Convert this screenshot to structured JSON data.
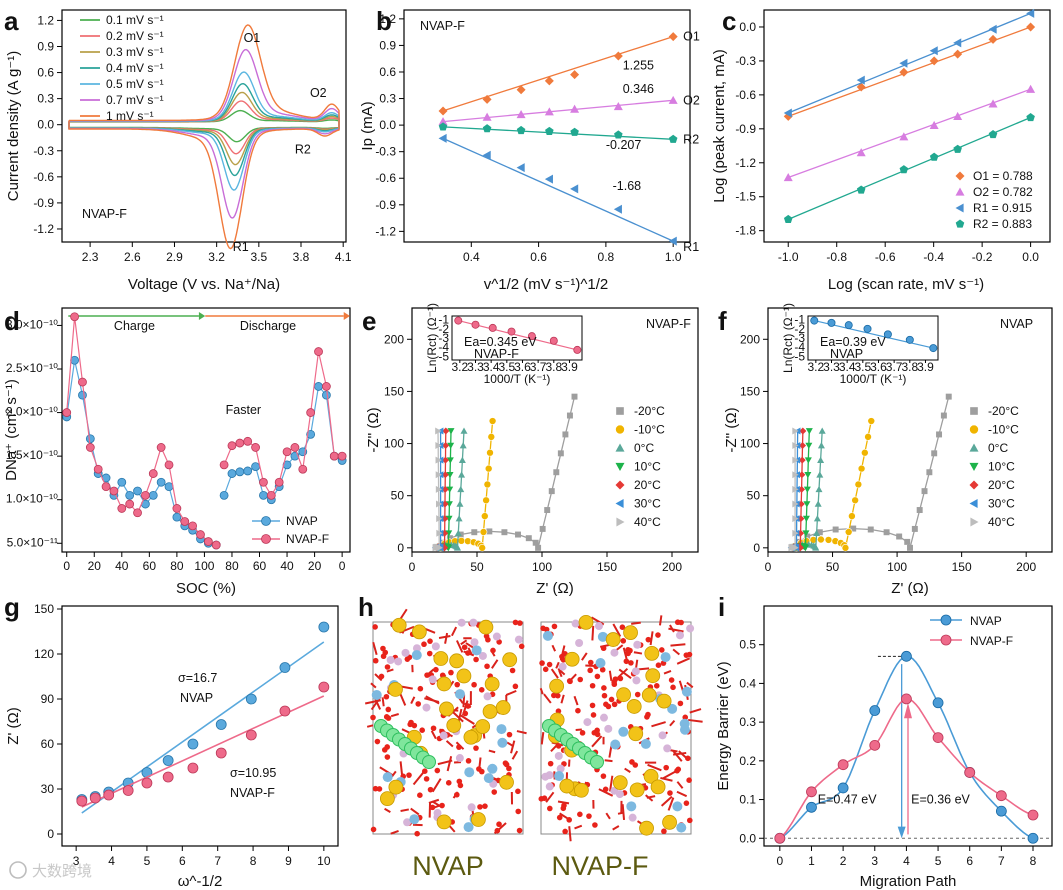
{
  "figure": {
    "watermark": "大数跨境",
    "panels": [
      {
        "id": "a",
        "label": "a"
      },
      {
        "id": "b",
        "label": "b"
      },
      {
        "id": "c",
        "label": "c"
      },
      {
        "id": "d",
        "label": "d"
      },
      {
        "id": "e",
        "label": "e"
      },
      {
        "id": "f",
        "label": "f"
      },
      {
        "id": "g",
        "label": "g"
      },
      {
        "id": "h",
        "label": "h"
      },
      {
        "id": "i",
        "label": "i"
      }
    ]
  },
  "chart_data": [
    {
      "id": "a",
      "type": "line",
      "title": "",
      "xlabel": "Voltage (V vs. Na⁺/Na)",
      "ylabel": "Current density (A g⁻¹)",
      "xlim": [
        2.1,
        4.12
      ],
      "ylim": [
        -1.35,
        1.32
      ],
      "xticks": [
        2.3,
        2.6,
        2.9,
        3.2,
        3.5,
        3.8,
        4.1
      ],
      "yticks": [
        -1.2,
        -0.9,
        -0.6,
        -0.3,
        0.0,
        0.3,
        0.6,
        0.9,
        1.2
      ],
      "annotations": [
        "O1",
        "O2",
        "R1",
        "R2",
        "NVAP-F"
      ],
      "series": [
        {
          "name": "0.1 mV s⁻¹",
          "color": "#4caf50",
          "scale": 0.12
        },
        {
          "name": "0.2 mV s⁻¹",
          "color": "#ef6f73",
          "scale": 0.22
        },
        {
          "name": "0.3 mV s⁻¹",
          "color": "#b8a04a",
          "scale": 0.31
        },
        {
          "name": "0.4 mV s⁻¹",
          "color": "#2aa39a",
          "scale": 0.4
        },
        {
          "name": "0.5 mV s⁻¹",
          "color": "#5bb6e0",
          "scale": 0.52
        },
        {
          "name": "0.7 mV s⁻¹",
          "color": "#c86dd7",
          "scale": 0.75
        },
        {
          "name": "1 mV s⁻¹",
          "color": "#f07a3c",
          "scale": 1.0
        }
      ],
      "peaks": {
        "O1": {
          "x": 3.42,
          "y": 1.0
        },
        "O2": {
          "x": 4.02,
          "y": 0.18
        },
        "R1": {
          "x": 3.3,
          "y": -1.27
        },
        "R2": {
          "x": 3.97,
          "y": -0.08
        }
      }
    },
    {
      "id": "b",
      "type": "scatter",
      "title": "NVAP-F",
      "xlabel": "v^1/2 (mV s⁻¹)^1/2",
      "ylabel": "Ip (mA)",
      "xlim": [
        0.2,
        1.05
      ],
      "ylim": [
        -1.32,
        1.3
      ],
      "xticks": [
        0.4,
        0.6,
        0.8,
        1.0
      ],
      "yticks": [
        -1.2,
        -0.9,
        -0.6,
        -0.3,
        0.0,
        0.3,
        0.6,
        0.9,
        1.2
      ],
      "x": [
        0.316,
        0.447,
        0.548,
        0.632,
        0.707,
        0.837,
        1.0
      ],
      "series": [
        {
          "name": "O1",
          "color": "#f07a3c",
          "marker": "diamond",
          "slope": "1.255",
          "values": [
            0.16,
            0.29,
            0.4,
            0.5,
            0.57,
            0.78,
            1.0
          ]
        },
        {
          "name": "O2",
          "color": "#d77de0",
          "marker": "triangle",
          "slope": "0.346",
          "values": [
            0.04,
            0.09,
            0.12,
            0.15,
            0.18,
            0.21,
            0.28
          ]
        },
        {
          "name": "R2",
          "color": "#21a890",
          "marker": "pentagon",
          "slope": "-0.207",
          "values": [
            -0.02,
            -0.04,
            -0.06,
            -0.07,
            -0.08,
            -0.11,
            -0.16
          ]
        },
        {
          "name": "R1",
          "color": "#4a90d0",
          "marker": "triangle-left",
          "slope": "-1.68",
          "values": [
            -0.15,
            -0.34,
            -0.48,
            -0.61,
            -0.72,
            -0.95,
            -1.31
          ]
        }
      ]
    },
    {
      "id": "c",
      "type": "scatter",
      "xlabel": "Log (scan rate, mV s⁻¹)",
      "ylabel": "Log (peak current, mA)",
      "xlim": [
        -1.1,
        0.08
      ],
      "ylim": [
        -1.9,
        0.15
      ],
      "xticks": [
        -1.0,
        -0.8,
        -0.6,
        -0.4,
        -0.2,
        0.0
      ],
      "yticks": [
        -1.8,
        -1.5,
        -1.2,
        -0.9,
        -0.6,
        -0.3,
        0.0
      ],
      "x": [
        -1.0,
        -0.699,
        -0.523,
        -0.398,
        -0.301,
        -0.155,
        0.0
      ],
      "series": [
        {
          "name": "O1 = 0.788",
          "color": "#f07a3c",
          "marker": "diamond",
          "values": [
            -0.79,
            -0.53,
            -0.4,
            -0.3,
            -0.24,
            -0.11,
            0.0
          ]
        },
        {
          "name": "O2 = 0.782",
          "color": "#d77de0",
          "marker": "triangle",
          "values": [
            -1.33,
            -1.11,
            -0.97,
            -0.87,
            -0.79,
            -0.68,
            -0.55
          ]
        },
        {
          "name": "R1 = 0.915",
          "color": "#4a90d0",
          "marker": "triangle-left",
          "values": [
            -0.76,
            -0.47,
            -0.32,
            -0.21,
            -0.14,
            -0.02,
            0.12
          ]
        },
        {
          "name": "R2 = 0.883",
          "color": "#21a890",
          "marker": "pentagon",
          "values": [
            -1.7,
            -1.44,
            -1.26,
            -1.15,
            -1.08,
            -0.95,
            -0.8
          ]
        }
      ]
    },
    {
      "id": "d",
      "type": "line",
      "xlabel": "SOC (%)",
      "ylabel": "DNa⁺ (cm² s⁻¹)",
      "ylim": [
        4e-11,
        3.2e-10
      ],
      "xticks": [
        "0",
        "20",
        "40",
        "60",
        "80",
        "100",
        "80",
        "60",
        "40",
        "20",
        "0"
      ],
      "yticks": [
        "5.0×10⁻¹¹",
        "1.0×10⁻¹⁰",
        "1.5×10⁻¹⁰",
        "2.0×10⁻¹⁰",
        "2.5×10⁻¹⁰",
        "3.0×10⁻¹⁰"
      ],
      "annotations": [
        "Charge",
        "Discharge",
        "Faster"
      ],
      "series": [
        {
          "name": "NVAP",
          "color": "#5aa9dd",
          "path": [
            [
              0,
              1.95e-10
            ],
            [
              5,
              2.6e-10
            ],
            [
              10,
              2.2e-10
            ],
            [
              15,
              1.7e-10
            ],
            [
              20,
              1.3e-10
            ],
            [
              25,
              1.25e-10
            ],
            [
              30,
              1.05e-10
            ],
            [
              35,
              1.2e-10
            ],
            [
              40,
              1.05e-10
            ],
            [
              45,
              1.1e-10
            ],
            [
              50,
              9.5e-11
            ],
            [
              55,
              1.05e-10
            ],
            [
              60,
              1.2e-10
            ],
            [
              65,
              1.15e-10
            ],
            [
              70,
              8e-11
            ],
            [
              75,
              7e-11
            ],
            [
              80,
              6.5e-11
            ],
            [
              85,
              5.5e-11
            ],
            [
              90,
              5e-11
            ],
            [
              95,
              4.8e-11
            ],
            [
              100,
              1.05e-10
            ],
            [
              105,
              1.3e-10
            ],
            [
              110,
              1.32e-10
            ],
            [
              115,
              1.33e-10
            ],
            [
              120,
              1.38e-10
            ],
            [
              125,
              1.05e-10
            ],
            [
              130,
              1e-10
            ],
            [
              135,
              1.15e-10
            ],
            [
              140,
              1.4e-10
            ],
            [
              145,
              1.5e-10
            ],
            [
              150,
              1.55e-10
            ],
            [
              155,
              1.75e-10
            ],
            [
              160,
              2.3e-10
            ],
            [
              165,
              2.2e-10
            ],
            [
              170,
              1.5e-10
            ],
            [
              175,
              1.45e-10
            ]
          ]
        },
        {
          "name": "NVAP-F",
          "color": "#ee6a8a",
          "path": [
            [
              0,
              2e-10
            ],
            [
              5,
              3.1e-10
            ],
            [
              10,
              2.35e-10
            ],
            [
              15,
              1.6e-10
            ],
            [
              20,
              1.35e-10
            ],
            [
              25,
              1.15e-10
            ],
            [
              30,
              1.1e-10
            ],
            [
              35,
              9e-11
            ],
            [
              40,
              9.5e-11
            ],
            [
              45,
              8.5e-11
            ],
            [
              50,
              1.05e-10
            ],
            [
              55,
              1.3e-10
            ],
            [
              60,
              1.6e-10
            ],
            [
              65,
              1.4e-10
            ],
            [
              70,
              9e-11
            ],
            [
              75,
              7.5e-11
            ],
            [
              80,
              7e-11
            ],
            [
              85,
              6e-11
            ],
            [
              90,
              5.2e-11
            ],
            [
              95,
              4.8e-11
            ],
            [
              100,
              1.4e-10
            ],
            [
              105,
              1.62e-10
            ],
            [
              110,
              1.65e-10
            ],
            [
              115,
              1.67e-10
            ],
            [
              120,
              1.6e-10
            ],
            [
              125,
              1.2e-10
            ],
            [
              130,
              1.05e-10
            ],
            [
              135,
              1.2e-10
            ],
            [
              140,
              1.55e-10
            ],
            [
              145,
              1.6e-10
            ],
            [
              150,
              1.35e-10
            ],
            [
              155,
              2e-10
            ],
            [
              160,
              2.7e-10
            ],
            [
              165,
              2.3e-10
            ],
            [
              170,
              1.5e-10
            ],
            [
              175,
              1.5e-10
            ]
          ]
        }
      ]
    },
    {
      "id": "e",
      "type": "scatter",
      "title": "NVAP-F",
      "xlabel": "Z' (Ω)",
      "ylabel": "-Z'' (Ω)",
      "xlim": [
        0,
        220
      ],
      "ylim": [
        -4,
        230
      ],
      "xticks": [
        0,
        50,
        100,
        150,
        200
      ],
      "yticks": [
        0,
        50,
        100,
        150,
        200
      ],
      "series": [
        {
          "name": "-20°C",
          "color": "#9e9e9e",
          "marker": "square",
          "rct": 75,
          "rs": 22,
          "tail": 125
        },
        {
          "name": "-10°C",
          "color": "#f0b400",
          "marker": "circle",
          "rct": 32,
          "rs": 22,
          "tail": 62
        },
        {
          "name": "0°C",
          "color": "#5aa89a",
          "marker": "triangle",
          "rct": 14,
          "rs": 21,
          "tail": 40
        },
        {
          "name": "10°C",
          "color": "#1db34a",
          "marker": "triangle-down",
          "rct": 8,
          "rs": 20,
          "tail": 30
        },
        {
          "name": "20°C",
          "color": "#e53935",
          "marker": "diamond",
          "rct": 6,
          "rs": 19,
          "tail": 26
        },
        {
          "name": "30°C",
          "color": "#3a8fd8",
          "marker": "triangle-left",
          "rct": 4,
          "rs": 18,
          "tail": 22
        },
        {
          "name": "40°C",
          "color": "#bdbdbd",
          "marker": "triangle-right",
          "rct": 3,
          "rs": 18,
          "tail": 20
        }
      ],
      "inset": {
        "xlabel": "1000/T (K⁻¹)",
        "ylabel": "Ln(Rct) (Ω⁻¹)",
        "annotation": "Ea=0.345 eV",
        "sublabel": "NVAP-F",
        "color": "#ee6a8a",
        "xticks": [
          3.2,
          3.3,
          3.4,
          3.5,
          3.6,
          3.7,
          3.8,
          3.9
        ],
        "yticks": [
          -1,
          -2,
          -3,
          -4,
          -5
        ],
        "x": [
          3.19,
          3.3,
          3.41,
          3.53,
          3.66,
          3.8,
          3.95
        ],
        "values": [
          -1.0,
          -1.45,
          -1.8,
          -2.2,
          -2.7,
          -3.2,
          -4.2
        ]
      }
    },
    {
      "id": "f",
      "type": "scatter",
      "title": "NVAP",
      "xlabel": "Z' (Ω)",
      "ylabel": "-Z'' (Ω)",
      "xlim": [
        0,
        220
      ],
      "ylim": [
        -4,
        230
      ],
      "xticks": [
        0,
        50,
        100,
        150,
        200
      ],
      "yticks": [
        0,
        50,
        100,
        150,
        200
      ],
      "series": [
        {
          "name": "-20°C",
          "color": "#9e9e9e",
          "marker": "square",
          "rct": 88,
          "rs": 22,
          "tail": 140
        },
        {
          "name": "-10°C",
          "color": "#f0b400",
          "marker": "circle",
          "rct": 38,
          "rs": 22,
          "tail": 80
        },
        {
          "name": "0°C",
          "color": "#5aa89a",
          "marker": "triangle",
          "rct": 16,
          "rs": 21,
          "tail": 42
        },
        {
          "name": "10°C",
          "color": "#1db34a",
          "marker": "triangle-down",
          "rct": 9,
          "rs": 20,
          "tail": 32
        },
        {
          "name": "20°C",
          "color": "#e53935",
          "marker": "diamond",
          "rct": 6,
          "rs": 19,
          "tail": 27
        },
        {
          "name": "30°C",
          "color": "#3a8fd8",
          "marker": "triangle-left",
          "rct": 4,
          "rs": 18,
          "tail": 23
        },
        {
          "name": "40°C",
          "color": "#bdbdbd",
          "marker": "triangle-right",
          "rct": 3,
          "rs": 18,
          "tail": 21
        }
      ],
      "inset": {
        "xlabel": "1000/T (K⁻¹)",
        "ylabel": "Ln(Rct) (Ω⁻¹)",
        "annotation": "Ea=0.39 eV",
        "sublabel": "NVAP",
        "color": "#4a9bd6",
        "xticks": [
          3.2,
          3.3,
          3.4,
          3.5,
          3.6,
          3.7,
          3.8,
          3.9
        ],
        "yticks": [
          -1,
          -2,
          -3,
          -4,
          -5
        ],
        "x": [
          3.19,
          3.3,
          3.41,
          3.53,
          3.66,
          3.8,
          3.95
        ],
        "values": [
          -1.0,
          -1.25,
          -1.5,
          -1.9,
          -2.5,
          -3.1,
          -4.0
        ]
      }
    },
    {
      "id": "g",
      "type": "scatter",
      "xlabel": "ω^-1/2",
      "ylabel": "Z' (Ω)",
      "xlim": [
        2.6,
        10.4
      ],
      "ylim": [
        -8,
        152
      ],
      "xticks": [
        3,
        4,
        5,
        6,
        7,
        8,
        9,
        10
      ],
      "yticks": [
        0,
        30,
        60,
        90,
        120,
        150
      ],
      "series": [
        {
          "name": "NVAP",
          "sigma": "σ=16.7",
          "color": "#5aa9dd",
          "x": [
            3.16,
            3.54,
            3.92,
            4.47,
            5.0,
            5.6,
            6.3,
            7.1,
            7.95,
            8.9,
            10.0
          ],
          "values": [
            23,
            25,
            28,
            34,
            41,
            49,
            60,
            73,
            90,
            111,
            138
          ],
          "fit": [
            [
              3.16,
              14
            ],
            [
              10.0,
              128
            ]
          ]
        },
        {
          "name": "NVAP-F",
          "sigma": "σ=10.95",
          "color": "#ee6a8a",
          "x": [
            3.16,
            3.54,
            3.92,
            4.47,
            5.0,
            5.6,
            6.3,
            7.1,
            7.95,
            8.9,
            10.0
          ],
          "values": [
            22,
            24,
            26,
            29,
            34,
            38,
            44,
            54,
            66,
            82,
            98
          ],
          "fit": [
            [
              3.16,
              18
            ],
            [
              10.0,
              92
            ]
          ]
        }
      ]
    },
    {
      "id": "h",
      "type": "other",
      "labels": [
        "NVAP",
        "NVAP-F"
      ]
    },
    {
      "id": "i",
      "type": "line",
      "xlabel": "Migration Path",
      "ylabel": "Energy Barrier (eV)",
      "xlim": [
        -0.5,
        8.6
      ],
      "ylim": [
        -0.02,
        0.6
      ],
      "xticks": [
        0,
        1,
        2,
        3,
        4,
        5,
        6,
        7,
        8
      ],
      "yticks": [
        0.0,
        0.1,
        0.2,
        0.3,
        0.4,
        0.5
      ],
      "x": [
        0,
        1,
        2,
        3,
        4,
        5,
        6,
        7,
        8
      ],
      "series": [
        {
          "name": "NVAP",
          "color": "#4a9bd6",
          "values": [
            0.0,
            0.08,
            0.13,
            0.33,
            0.47,
            0.35,
            0.17,
            0.07,
            0.0
          ]
        },
        {
          "name": "NVAP-F",
          "color": "#ee6a8a",
          "values": [
            0.0,
            0.12,
            0.19,
            0.24,
            0.36,
            0.26,
            0.17,
            0.11,
            0.06
          ]
        }
      ],
      "annotations": [
        "E=0.47 eV",
        "E=0.36 eV"
      ]
    }
  ]
}
